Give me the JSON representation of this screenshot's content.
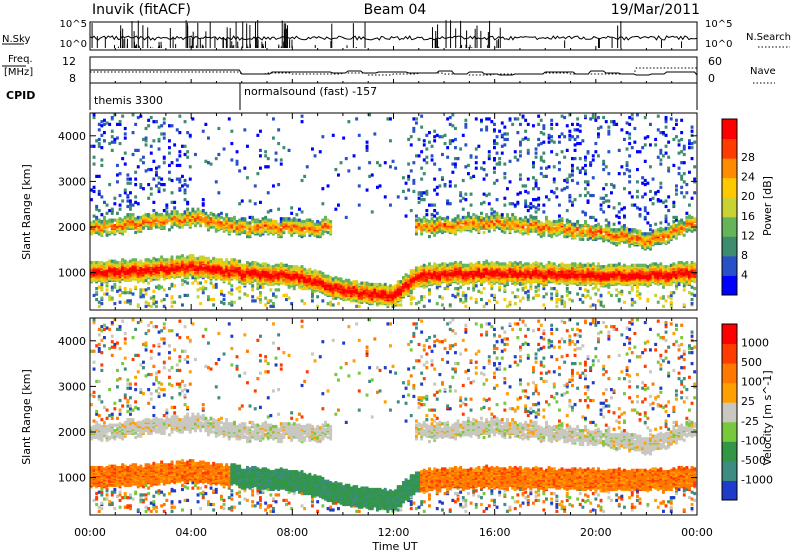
{
  "header": {
    "station": "Inuvik (fitACF)",
    "beam": "Beam 04",
    "date": "19/Mar/2011"
  },
  "panels": {
    "nsky": {
      "label": "N.Sky",
      "ticks": [
        "10^5",
        "10^0"
      ],
      "right_label": "N.Search",
      "right_ticks": [
        "10^5",
        "10^0"
      ]
    },
    "freq": {
      "label_line1": "Freq.",
      "label_line2": "[MHz]",
      "ticks": [
        "12",
        "8"
      ],
      "right_label": "Nave",
      "right_ticks": [
        "60",
        "0"
      ]
    },
    "cpid": {
      "label": "CPID",
      "segments": [
        "themis 3300",
        "normalsound (fast) -157"
      ]
    }
  },
  "chart_data": [
    {
      "type": "heatmap",
      "title": "",
      "xlabel": "Time UT",
      "ylabel": "Slant Range [km]",
      "x_ticks": [
        "00:00",
        "04:00",
        "08:00",
        "12:00",
        "16:00",
        "20:00",
        "00:00"
      ],
      "xlim_hours": [
        0,
        24
      ],
      "y_ticks": [
        1000,
        2000,
        3000,
        4000
      ],
      "ylim": [
        180,
        4500
      ],
      "colorbar": {
        "label": "Power [dB]",
        "ticks": [
          "4",
          "8",
          "12",
          "16",
          "20",
          "24",
          "28"
        ],
        "colors": [
          "#0000ff",
          "#2850c8",
          "#3d8c6e",
          "#64b45a",
          "#c8d232",
          "#ffc800",
          "#ff8c00",
          "#ff3c00",
          "#ff0000"
        ]
      },
      "bands": [
        {
          "name": "main",
          "points": [
            [
              0,
              1000
            ],
            [
              2,
              1050
            ],
            [
              4,
              1150
            ],
            [
              6,
              1000
            ],
            [
              8,
              950
            ],
            [
              10,
              600
            ],
            [
              12,
              500
            ],
            [
              13,
              950
            ],
            [
              16,
              1000
            ],
            [
              20,
              950
            ],
            [
              22,
              950
            ],
            [
              24,
              1000
            ]
          ]
        },
        {
          "name": "upper",
          "points": [
            [
              0,
              2000
            ],
            [
              2,
              2100
            ],
            [
              4,
              2200
            ],
            [
              6,
              2000
            ],
            [
              9,
              2000
            ],
            [
              13,
              2000
            ],
            [
              16,
              2100
            ],
            [
              20,
              1900
            ],
            [
              22,
              1700
            ],
            [
              24,
              2100
            ]
          ]
        }
      ]
    },
    {
      "type": "heatmap",
      "title": "",
      "xlabel": "Time UT",
      "ylabel": "Slant Range [km]",
      "x_ticks": [
        "00:00",
        "04:00",
        "08:00",
        "12:00",
        "16:00",
        "20:00",
        "00:00"
      ],
      "xlim_hours": [
        0,
        24
      ],
      "y_ticks": [
        1000,
        2000,
        3000,
        4000
      ],
      "ylim": [
        180,
        4500
      ],
      "colorbar": {
        "label": "Velocity [m s^-1]",
        "ticks": [
          "1000",
          "500",
          "100",
          "25",
          "-25",
          "-100",
          "-500",
          "-1000"
        ],
        "colors": [
          "#1e3cc8",
          "#3c8c82",
          "#329646",
          "#78c83c",
          "#c8c8c0",
          "#ffa000",
          "#ff7800",
          "#ff3c00",
          "#ff0000"
        ]
      }
    }
  ]
}
